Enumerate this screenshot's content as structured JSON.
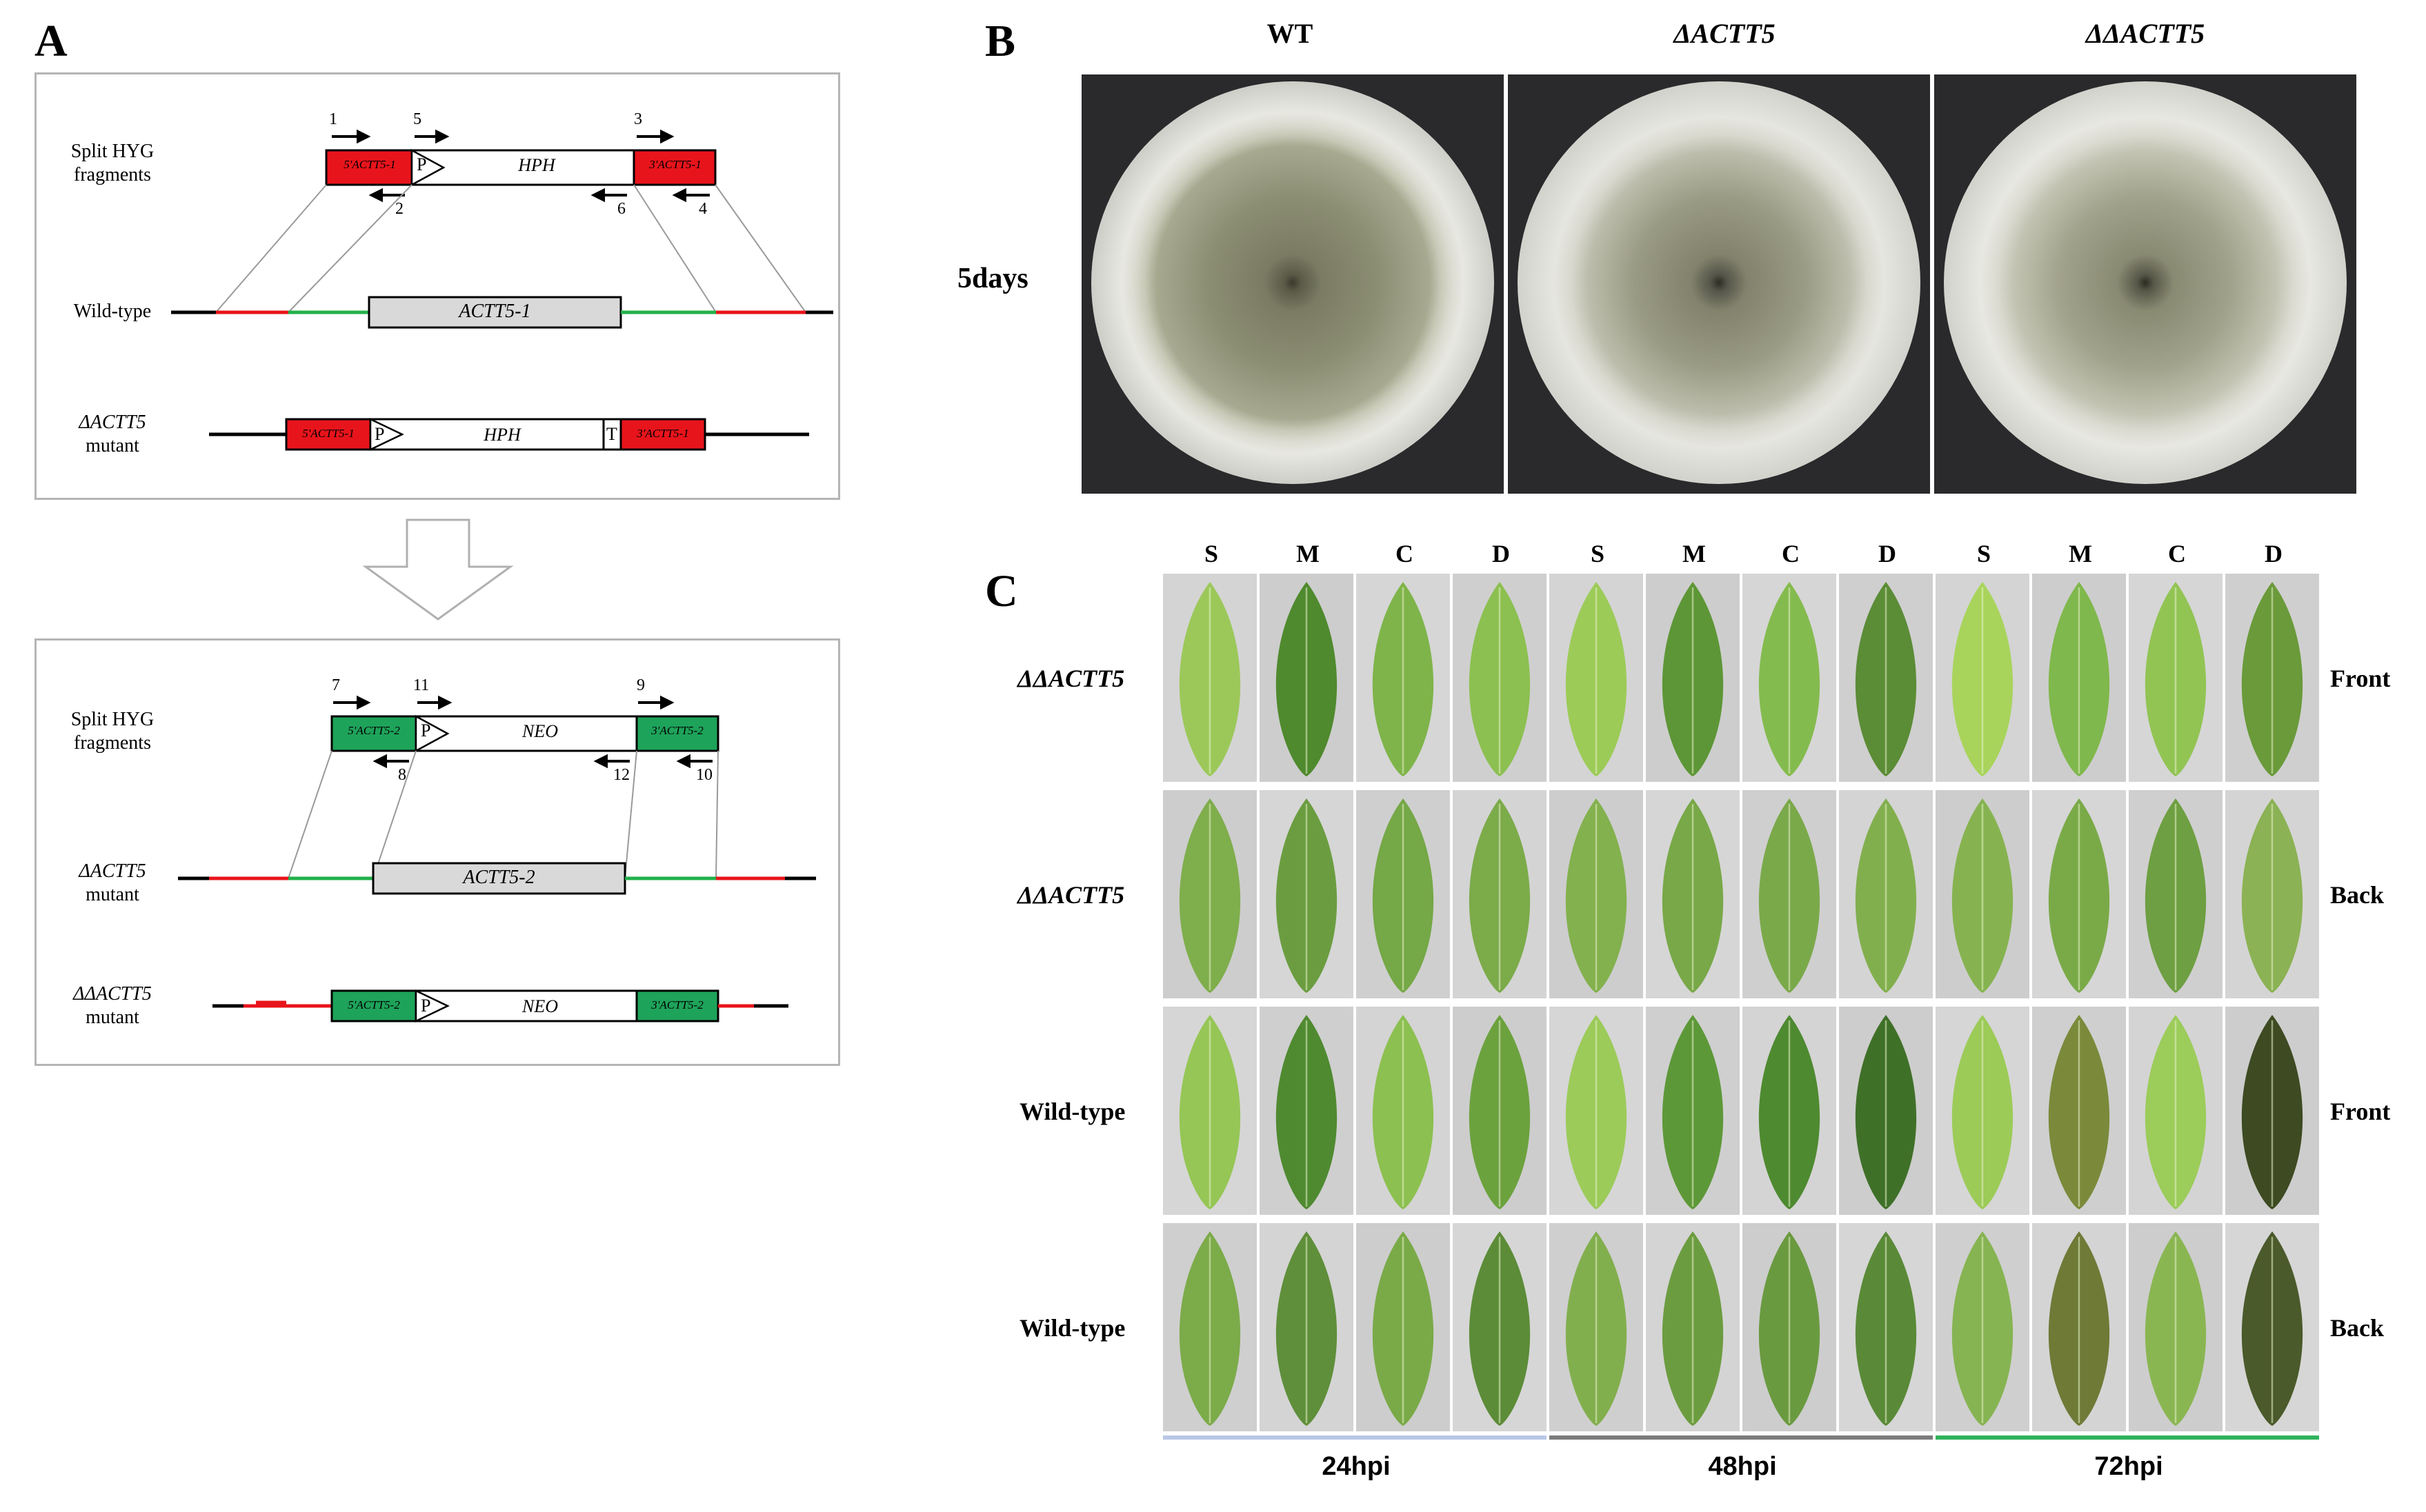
{
  "panels": {
    "a": "A",
    "b": "B",
    "c": "C"
  },
  "panel_a": {
    "block1": {
      "split_label": [
        "Split HYG",
        "fragments"
      ],
      "frag_left": "5'ACTT5-1",
      "frag_right": "3'ACTT5-1",
      "promoter": "P",
      "marker": "HPH",
      "primers_top": [
        "1",
        "5",
        "3"
      ],
      "primers_bottom": [
        "2",
        "6",
        "4"
      ],
      "wt_label": "Wild-type",
      "gene": "ACTT5-1",
      "mutant_label": [
        "ΔACTT5",
        "mutant"
      ],
      "terminator": "T"
    },
    "block2": {
      "split_label": [
        "Split HYG",
        "fragments"
      ],
      "frag_left": "5'ACTT5-2",
      "frag_right": "3'ACTT5-2",
      "promoter": "P",
      "marker": "NEO",
      "primers_top": [
        "7",
        "11",
        "9"
      ],
      "primers_bottom": [
        "8",
        "12",
        "10"
      ],
      "mid_label": [
        "ΔACTT5",
        "mutant"
      ],
      "gene": "ACTT5-2",
      "dmutant_label": [
        "ΔΔACTT5",
        "mutant"
      ]
    }
  },
  "panel_b": {
    "strains": [
      "WT",
      "ΔACTT5",
      "ΔΔACTT5"
    ],
    "time": "5days"
  },
  "panel_c": {
    "columns": [
      "S",
      "M",
      "C",
      "D",
      "S",
      "M",
      "C",
      "D",
      "S",
      "M",
      "C",
      "D"
    ],
    "rows": [
      {
        "strain": "ΔΔACTT5",
        "side": "Front",
        "italic": true
      },
      {
        "strain": "ΔΔACTT5",
        "side": "Back",
        "italic": true
      },
      {
        "strain": "Wild-type",
        "side": "Front",
        "italic": false
      },
      {
        "strain": "Wild-type",
        "side": "Back",
        "italic": false
      }
    ],
    "timepoints": [
      "24hpi",
      "48hpi",
      "72hpi"
    ],
    "timepoint_colors": [
      "#b9c7e6",
      "#7c7c7c",
      "#2fb35a"
    ]
  },
  "colors": {
    "red_fragment": "#e8141b",
    "green_fragment": "#1ea35a",
    "gene_box": "#d9d9d9",
    "line_red": "#e8141b",
    "line_green": "#22b04a",
    "plate_background": "#2a2a2c"
  }
}
